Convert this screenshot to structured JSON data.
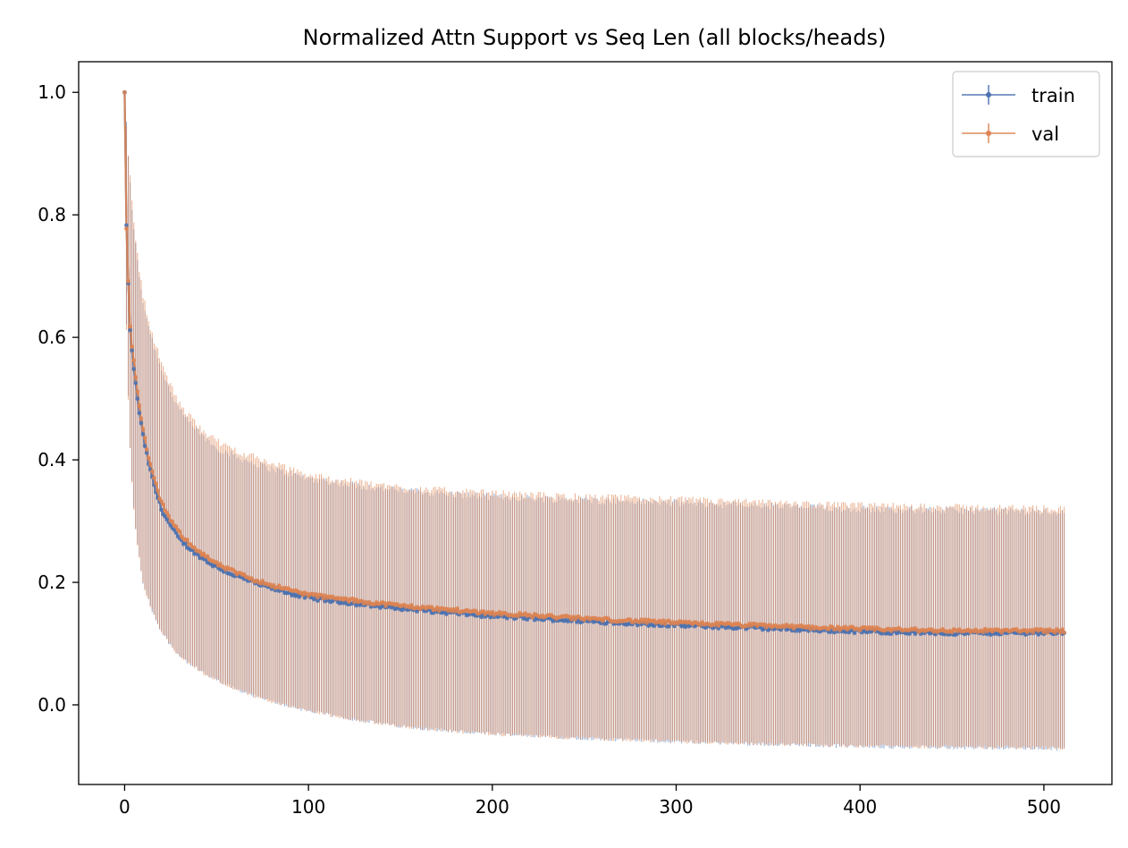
{
  "chart_data": {
    "type": "line",
    "title": "Normalized Attn Support vs Seq Len (all blocks/heads)",
    "xlabel": "",
    "ylabel": "",
    "xlim": [
      -25,
      537
    ],
    "ylim": [
      -0.13,
      1.05
    ],
    "x_ticks": [
      0,
      100,
      200,
      300,
      400,
      500
    ],
    "x_tick_labels": [
      "0",
      "100",
      "200",
      "300",
      "400",
      "500"
    ],
    "y_ticks": [
      0.0,
      0.2,
      0.4,
      0.6,
      0.8,
      1.0
    ],
    "y_tick_labels": [
      "0.0",
      "0.2",
      "0.4",
      "0.6",
      "0.8",
      "1.0"
    ],
    "grid": false,
    "legend_position": "top-right",
    "x_range": [
      0,
      511
    ],
    "series": [
      {
        "name": "train",
        "color": "#4c72b0",
        "style": "errorbar",
        "mean_points": [
          {
            "x": 0,
            "y": 1.0
          },
          {
            "x": 1,
            "y": 0.78
          },
          {
            "x": 2,
            "y": 0.69
          },
          {
            "x": 3,
            "y": 0.61
          },
          {
            "x": 5,
            "y": 0.55
          },
          {
            "x": 7,
            "y": 0.5
          },
          {
            "x": 10,
            "y": 0.44
          },
          {
            "x": 15,
            "y": 0.37
          },
          {
            "x": 20,
            "y": 0.32
          },
          {
            "x": 30,
            "y": 0.27
          },
          {
            "x": 50,
            "y": 0.225
          },
          {
            "x": 75,
            "y": 0.195
          },
          {
            "x": 100,
            "y": 0.175
          },
          {
            "x": 150,
            "y": 0.158
          },
          {
            "x": 200,
            "y": 0.145
          },
          {
            "x": 250,
            "y": 0.137
          },
          {
            "x": 300,
            "y": 0.13
          },
          {
            "x": 350,
            "y": 0.125
          },
          {
            "x": 400,
            "y": 0.12
          },
          {
            "x": 450,
            "y": 0.117
          },
          {
            "x": 511,
            "y": 0.118
          }
        ],
        "upper_points": [
          {
            "x": 0,
            "y": 1.0
          },
          {
            "x": 1,
            "y": 0.95
          },
          {
            "x": 3,
            "y": 0.85
          },
          {
            "x": 5,
            "y": 0.78
          },
          {
            "x": 10,
            "y": 0.66
          },
          {
            "x": 20,
            "y": 0.55
          },
          {
            "x": 30,
            "y": 0.48
          },
          {
            "x": 50,
            "y": 0.42
          },
          {
            "x": 75,
            "y": 0.39
          },
          {
            "x": 100,
            "y": 0.37
          },
          {
            "x": 150,
            "y": 0.35
          },
          {
            "x": 200,
            "y": 0.34
          },
          {
            "x": 300,
            "y": 0.33
          },
          {
            "x": 400,
            "y": 0.32
          },
          {
            "x": 511,
            "y": 0.315
          }
        ],
        "lower_points": [
          {
            "x": 0,
            "y": 1.0
          },
          {
            "x": 1,
            "y": 0.62
          },
          {
            "x": 3,
            "y": 0.42
          },
          {
            "x": 5,
            "y": 0.32
          },
          {
            "x": 10,
            "y": 0.2
          },
          {
            "x": 20,
            "y": 0.12
          },
          {
            "x": 30,
            "y": 0.08
          },
          {
            "x": 50,
            "y": 0.04
          },
          {
            "x": 75,
            "y": 0.01
          },
          {
            "x": 100,
            "y": -0.01
          },
          {
            "x": 150,
            "y": -0.035
          },
          {
            "x": 200,
            "y": -0.048
          },
          {
            "x": 300,
            "y": -0.06
          },
          {
            "x": 400,
            "y": -0.068
          },
          {
            "x": 511,
            "y": -0.072
          }
        ]
      },
      {
        "name": "val",
        "color": "#dd8452",
        "style": "errorbar",
        "mean_points": [
          {
            "x": 0,
            "y": 1.0
          },
          {
            "x": 1,
            "y": 0.78
          },
          {
            "x": 2,
            "y": 0.69
          },
          {
            "x": 3,
            "y": 0.62
          },
          {
            "x": 5,
            "y": 0.56
          },
          {
            "x": 7,
            "y": 0.51
          },
          {
            "x": 10,
            "y": 0.45
          },
          {
            "x": 15,
            "y": 0.38
          },
          {
            "x": 20,
            "y": 0.33
          },
          {
            "x": 30,
            "y": 0.28
          },
          {
            "x": 50,
            "y": 0.23
          },
          {
            "x": 75,
            "y": 0.2
          },
          {
            "x": 100,
            "y": 0.18
          },
          {
            "x": 150,
            "y": 0.162
          },
          {
            "x": 200,
            "y": 0.15
          },
          {
            "x": 250,
            "y": 0.141
          },
          {
            "x": 300,
            "y": 0.134
          },
          {
            "x": 350,
            "y": 0.129
          },
          {
            "x": 400,
            "y": 0.124
          },
          {
            "x": 450,
            "y": 0.121
          },
          {
            "x": 511,
            "y": 0.121
          }
        ],
        "upper_points": [
          {
            "x": 0,
            "y": 1.0
          },
          {
            "x": 1,
            "y": 0.95
          },
          {
            "x": 3,
            "y": 0.86
          },
          {
            "x": 5,
            "y": 0.79
          },
          {
            "x": 10,
            "y": 0.67
          },
          {
            "x": 20,
            "y": 0.56
          },
          {
            "x": 30,
            "y": 0.49
          },
          {
            "x": 50,
            "y": 0.43
          },
          {
            "x": 75,
            "y": 0.4
          },
          {
            "x": 100,
            "y": 0.375
          },
          {
            "x": 150,
            "y": 0.355
          },
          {
            "x": 200,
            "y": 0.345
          },
          {
            "x": 300,
            "y": 0.335
          },
          {
            "x": 400,
            "y": 0.325
          },
          {
            "x": 511,
            "y": 0.32
          }
        ],
        "lower_points": [
          {
            "x": 0,
            "y": 1.0
          },
          {
            "x": 1,
            "y": 0.61
          },
          {
            "x": 3,
            "y": 0.42
          },
          {
            "x": 5,
            "y": 0.32
          },
          {
            "x": 10,
            "y": 0.2
          },
          {
            "x": 20,
            "y": 0.12
          },
          {
            "x": 30,
            "y": 0.08
          },
          {
            "x": 50,
            "y": 0.04
          },
          {
            "x": 75,
            "y": 0.01
          },
          {
            "x": 100,
            "y": -0.01
          },
          {
            "x": 150,
            "y": -0.035
          },
          {
            "x": 200,
            "y": -0.048
          },
          {
            "x": 300,
            "y": -0.06
          },
          {
            "x": 400,
            "y": -0.067
          },
          {
            "x": 511,
            "y": -0.07
          }
        ]
      }
    ]
  }
}
